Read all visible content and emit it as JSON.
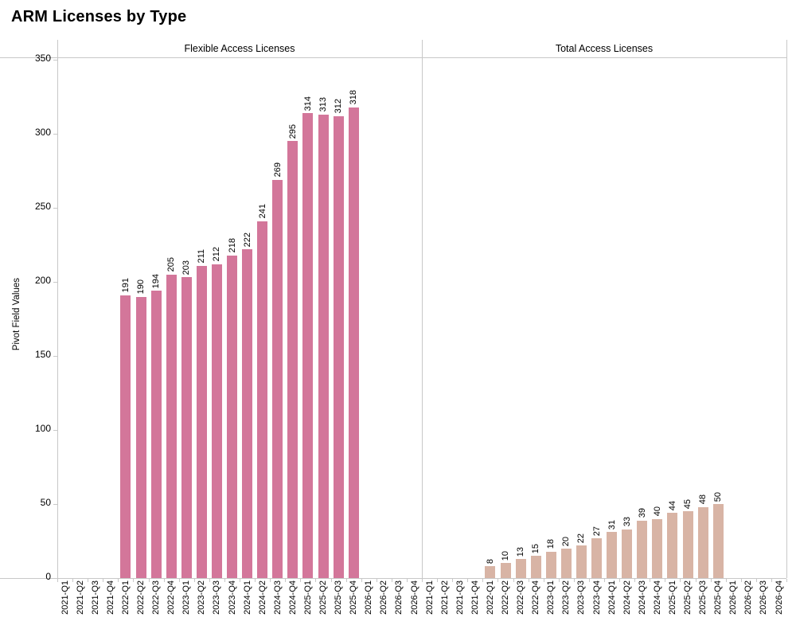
{
  "title": "ARM Licenses by Type",
  "chart_data": {
    "type": "bar",
    "title": "ARM Licenses by Type",
    "ylabel": "Pivot Field Values",
    "ylim": [
      0,
      350
    ],
    "yticks": [
      0,
      50,
      100,
      150,
      200,
      250,
      300,
      350
    ],
    "grid": false,
    "legend_position": "none",
    "bar_value_labels_shown": true,
    "axis_line_color": "#c8c8c8",
    "text_color": "#000000",
    "categories": [
      "2021-Q1",
      "2021-Q2",
      "2021-Q3",
      "2021-Q4",
      "2022-Q1",
      "2022-Q2",
      "2022-Q3",
      "2022-Q4",
      "2023-Q1",
      "2023-Q2",
      "2023-Q3",
      "2023-Q4",
      "2024-Q1",
      "2024-Q2",
      "2024-Q3",
      "2024-Q4",
      "2025-Q1",
      "2025-Q2",
      "2025-Q3",
      "2025-Q4",
      "2026-Q1",
      "2026-Q2",
      "2026-Q3",
      "2026-Q4"
    ],
    "panels": [
      {
        "label": "Flexible Access Licenses",
        "color": "#d3769a",
        "values": [
          null,
          null,
          null,
          null,
          191,
          190,
          194,
          205,
          203,
          211,
          212,
          218,
          222,
          241,
          269,
          295,
          314,
          313,
          312,
          318,
          null,
          null,
          null,
          null
        ]
      },
      {
        "label": "Total Access Licenses",
        "color": "#d8b4a5",
        "values": [
          null,
          null,
          null,
          null,
          8,
          10,
          13,
          15,
          18,
          20,
          22,
          27,
          31,
          33,
          39,
          40,
          44,
          45,
          48,
          50,
          null,
          null,
          null,
          null
        ]
      }
    ]
  }
}
